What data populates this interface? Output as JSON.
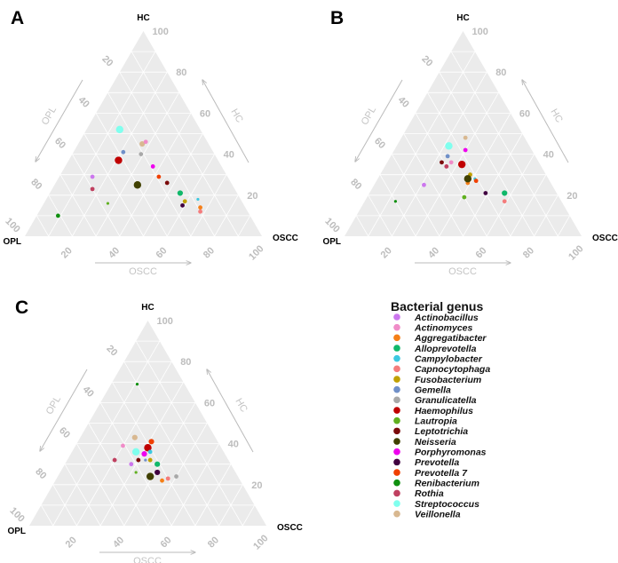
{
  "legend": {
    "title": "Bacterial genus",
    "position": "bottom-right",
    "items": [
      {
        "name": "Actinobacillus",
        "color": "#cc77ee"
      },
      {
        "name": "Actinomyces",
        "color": "#f08cc8"
      },
      {
        "name": "Aggregatibacter",
        "color": "#f57f17"
      },
      {
        "name": "Alloprevotella",
        "color": "#10b86a"
      },
      {
        "name": "Campylobacter",
        "color": "#3cc8e0"
      },
      {
        "name": "Capnocytophaga",
        "color": "#f47c7c"
      },
      {
        "name": "Fusobacterium",
        "color": "#c0a000"
      },
      {
        "name": "Gemella",
        "color": "#7090c8"
      },
      {
        "name": "Granulicatella",
        "color": "#a8a8a8"
      },
      {
        "name": "Haemophilus",
        "color": "#c00000"
      },
      {
        "name": "Lautropia",
        "color": "#60b020"
      },
      {
        "name": "Leptotrichia",
        "color": "#7a0a0a"
      },
      {
        "name": "Neisseria",
        "color": "#404000"
      },
      {
        "name": "Porphyromonas",
        "color": "#ee00ee"
      },
      {
        "name": "Prevotella",
        "color": "#400040"
      },
      {
        "name": "Prevotella 7",
        "color": "#f04000"
      },
      {
        "name": "Renibacterium",
        "color": "#109010"
      },
      {
        "name": "Rothia",
        "color": "#c04060"
      },
      {
        "name": "Streptococcus",
        "color": "#80ffee"
      },
      {
        "name": "Veillonella",
        "color": "#d8b890"
      }
    ]
  },
  "chart_data": [
    {
      "type": "scatter",
      "subtype": "ternary",
      "panel": "A",
      "axes": {
        "top": "HC",
        "left": "OPL",
        "right": "OSCC"
      },
      "axis_titles": {
        "hc": "HC",
        "opl": "OPL",
        "oscc": "OSCC"
      },
      "ticks": [
        "20",
        "40",
        "60",
        "80",
        "100"
      ],
      "grid": true,
      "point_fields": [
        "genus",
        "HC",
        "OSCC",
        "OPL",
        "size_rank"
      ],
      "points": [
        [
          "Streptococcus",
          52,
          14,
          34,
          3
        ],
        [
          "Veillonella",
          45,
          27,
          28,
          2
        ],
        [
          "Actinomyces",
          46,
          28,
          26,
          1
        ],
        [
          "Gemella",
          41,
          21,
          38,
          1
        ],
        [
          "Granulicatella",
          40,
          29,
          31,
          1
        ],
        [
          "Haemophilus",
          37,
          21,
          42,
          3
        ],
        [
          "Porphyromonas",
          34,
          37,
          29,
          1
        ],
        [
          "Actinobacillus",
          29,
          14,
          57,
          1
        ],
        [
          "Prevotella 7",
          29,
          42,
          29,
          1
        ],
        [
          "Leptotrichia",
          26,
          47,
          27,
          1
        ],
        [
          "Neisseria",
          25,
          35,
          40,
          3
        ],
        [
          "Rothia",
          23,
          17,
          60,
          1
        ],
        [
          "Alloprevotella",
          21,
          55,
          24,
          2
        ],
        [
          "Fusobacterium",
          17,
          59,
          24,
          1
        ],
        [
          "Campylobacter",
          18,
          64,
          18,
          0
        ],
        [
          "Lautropia",
          16,
          27,
          57,
          0
        ],
        [
          "Prevotella",
          15,
          59,
          26,
          1
        ],
        [
          "Aggregatibacter",
          14,
          67,
          19,
          1
        ],
        [
          "Capnocytophaga",
          12,
          68,
          20,
          1
        ],
        [
          "Renibacterium",
          10,
          9,
          81,
          1
        ]
      ]
    },
    {
      "type": "scatter",
      "subtype": "ternary",
      "panel": "B",
      "axes": {
        "top": "HC",
        "left": "OPL",
        "right": "OSCC"
      },
      "axis_titles": {
        "hc": "HC",
        "opl": "OPL",
        "oscc": "OSCC"
      },
      "ticks": [
        "20",
        "40",
        "60",
        "80",
        "100"
      ],
      "grid": true,
      "point_fields": [
        "genus",
        "HC",
        "OSCC",
        "OPL",
        "size_rank"
      ],
      "points": [
        [
          "Veillonella",
          48,
          27,
          25,
          1
        ],
        [
          "Streptococcus",
          44,
          22,
          34,
          3
        ],
        [
          "Porphyromonas",
          42,
          30,
          28,
          1
        ],
        [
          "Gemella",
          39,
          24,
          37,
          1
        ],
        [
          "Leptotrichia",
          36,
          23,
          41,
          1
        ],
        [
          "Actinomyces",
          36,
          27,
          37,
          1
        ],
        [
          "Rothia",
          34,
          26,
          40,
          1
        ],
        [
          "Haemophilus",
          35,
          32,
          33,
          3
        ],
        [
          "Fusobacterium",
          30,
          38,
          32,
          1
        ],
        [
          "Aggregatibacter",
          26,
          39,
          35,
          1
        ],
        [
          "Neisseria",
          28,
          38,
          34,
          3
        ],
        [
          "Campylobacter",
          28,
          41,
          31,
          0
        ],
        [
          "Prevotella 7",
          27,
          42,
          31,
          1
        ],
        [
          "Actinobacillus",
          25,
          21,
          54,
          1
        ],
        [
          "Prevotella",
          21,
          49,
          30,
          1
        ],
        [
          "Alloprevotella",
          21,
          57,
          22,
          2
        ],
        [
          "Lautropia",
          19,
          41,
          40,
          1
        ],
        [
          "Capnocytophaga",
          17,
          59,
          24,
          1
        ],
        [
          "Renibacterium",
          17,
          13,
          70,
          0
        ]
      ]
    },
    {
      "type": "scatter",
      "subtype": "ternary",
      "panel": "C",
      "axes": {
        "top": "HC",
        "left": "OPL",
        "right": "OSCC"
      },
      "axis_titles": {
        "hc": "HC",
        "opl": "OPL",
        "oscc": "OSCC"
      },
      "ticks": [
        "20",
        "40",
        "60",
        "80",
        "100"
      ],
      "grid": true,
      "point_fields": [
        "genus",
        "HC",
        "OSCC",
        "OPL",
        "size_rank"
      ],
      "points": [
        [
          "Renibacterium",
          69,
          11,
          20,
          0
        ],
        [
          "Veillonella",
          43,
          23,
          34,
          2
        ],
        [
          "Prevotella 7",
          41,
          31,
          28,
          2
        ],
        [
          "Actinomyces",
          39,
          20,
          41,
          1
        ],
        [
          "Haemophilus",
          38,
          31,
          31,
          3
        ],
        [
          "Streptococcus",
          36,
          27,
          37,
          3
        ],
        [
          "Campylobacter",
          36,
          33,
          31,
          1
        ],
        [
          "Porphyromonas",
          35,
          31,
          34,
          2
        ],
        [
          "Rothia",
          32,
          20,
          48,
          1
        ],
        [
          "Leptotrichia",
          32,
          30,
          38,
          1
        ],
        [
          "Gemella",
          32,
          33,
          35,
          0
        ],
        [
          "Fusobacterium",
          32,
          35,
          33,
          1
        ],
        [
          "Actinobacillus",
          30,
          28,
          42,
          1
        ],
        [
          "Alloprevotella",
          30,
          39,
          31,
          2
        ],
        [
          "Prevotella",
          26,
          41,
          33,
          2
        ],
        [
          "Lautropia",
          26,
          32,
          42,
          0
        ],
        [
          "Neisseria",
          24,
          39,
          37,
          3
        ],
        [
          "Granulicatella",
          24,
          50,
          26,
          1
        ],
        [
          "Capnocytophaga",
          23,
          47,
          30,
          1
        ],
        [
          "Aggregatibacter",
          22,
          45,
          33,
          1
        ]
      ]
    }
  ]
}
